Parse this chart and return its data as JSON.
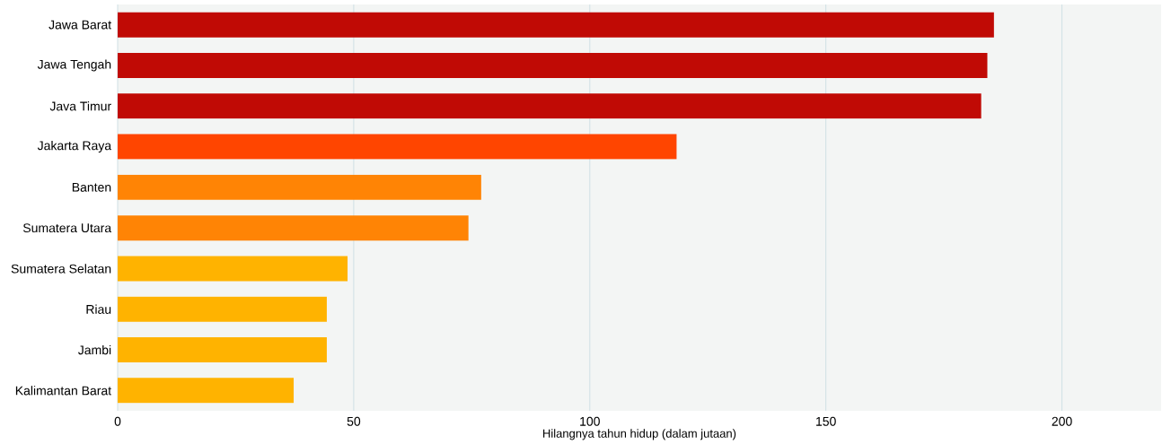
{
  "chart_data": {
    "type": "bar",
    "orientation": "horizontal",
    "xlabel": "Hilangnya tahun hidup (dalam jutaan)",
    "categories": [
      "Jawa Barat",
      "Jawa Tengah",
      "Java Timur",
      "Jakarta Raya",
      "Banten",
      "Sumatera Utara",
      "Sumatera Selatan",
      "Riau",
      "Jambi",
      "Kalimantan Barat"
    ],
    "values": [
      185.6,
      184.2,
      182.9,
      118.4,
      77,
      74.3,
      48.7,
      44.3,
      44.3,
      37.3
    ],
    "colors": [
      "#c00a05",
      "#c00a05",
      "#c00a05",
      "#ff4500",
      "#ff8405",
      "#ff8405",
      "#ffb300",
      "#ffb300",
      "#ffb300",
      "#ffb300"
    ],
    "xlim": [
      0,
      221
    ],
    "xticks": [
      0,
      50,
      100,
      150,
      200
    ],
    "grid": "x"
  }
}
